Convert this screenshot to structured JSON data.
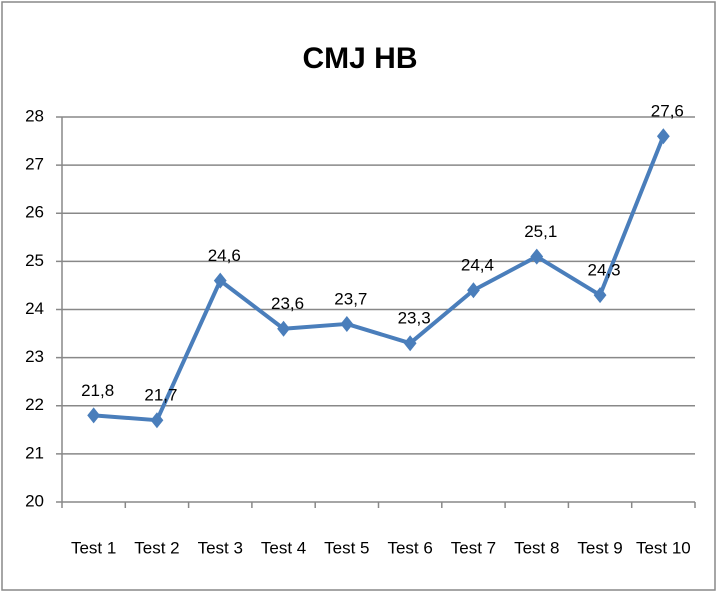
{
  "chart_data": {
    "type": "line",
    "title": "CMJ HB",
    "categories": [
      "Test 1",
      "Test 2",
      "Test 3",
      "Test 4",
      "Test 5",
      "Test 6",
      "Test 7",
      "Test 8",
      "Test 9",
      "Test 10"
    ],
    "series": [
      {
        "name": "CMJ HB",
        "color": "#4a7ebb",
        "values": [
          21.8,
          21.7,
          24.6,
          23.6,
          23.7,
          23.3,
          24.4,
          25.1,
          24.3,
          27.6
        ],
        "value_labels": [
          "21,8",
          "21,7",
          "24,6",
          "23,6",
          "23,7",
          "23,3",
          "24,4",
          "25,1",
          "24,3",
          "27,6"
        ]
      }
    ],
    "ylim": [
      20,
      28
    ],
    "yticks": [
      20,
      21,
      22,
      23,
      24,
      25,
      26,
      27,
      28
    ],
    "grid": true
  }
}
